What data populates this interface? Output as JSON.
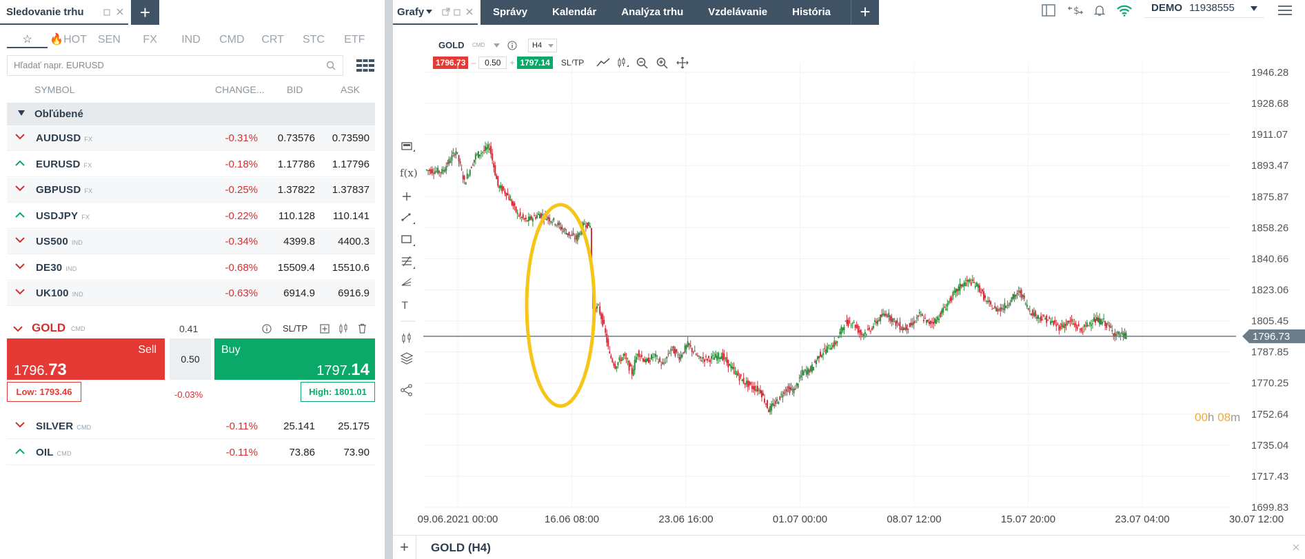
{
  "left_panel": {
    "tab_title": "Sledovanie trhu",
    "categories": [
      "☆",
      "🔥HOT",
      "SEN",
      "FX",
      "IND",
      "CMD",
      "CRT",
      "STC",
      "ETF"
    ],
    "search_placeholder": "Hľadať napr. EURUSD",
    "columns": {
      "symbol": "SYMBOL",
      "change": "CHANGE...",
      "bid": "BID",
      "ask": "ASK"
    },
    "section_title": "Obľúbené",
    "rows": [
      {
        "symbol": "AUDUSD",
        "type": "FX",
        "dir": "down",
        "change": "-0.31%",
        "bid": "0.73576",
        "ask": "0.73590"
      },
      {
        "symbol": "EURUSD",
        "type": "FX",
        "dir": "up",
        "change": "-0.18%",
        "bid": "1.17786",
        "ask": "1.17796"
      },
      {
        "symbol": "GBPUSD",
        "type": "FX",
        "dir": "down",
        "change": "-0.25%",
        "bid": "1.37822",
        "ask": "1.37837"
      },
      {
        "symbol": "USDJPY",
        "type": "FX",
        "dir": "up",
        "change": "-0.22%",
        "bid": "110.128",
        "ask": "110.141"
      },
      {
        "symbol": "US500",
        "type": "IND",
        "dir": "down",
        "change": "-0.34%",
        "bid": "4399.8",
        "ask": "4400.3"
      },
      {
        "symbol": "DE30",
        "type": "IND",
        "dir": "down",
        "change": "-0.68%",
        "bid": "15509.4",
        "ask": "15510.6"
      },
      {
        "symbol": "UK100",
        "type": "IND",
        "dir": "down",
        "change": "-0.63%",
        "bid": "6914.9",
        "ask": "6916.9"
      }
    ],
    "gold": {
      "symbol": "GOLD",
      "type": "CMD",
      "spread": "0.41",
      "sltp": "SL/TP",
      "sell_label": "Sell",
      "sell_price_main": "1796.",
      "sell_price_big": "73",
      "buy_label": "Buy",
      "buy_price_main": "1797.",
      "buy_price_big": "14",
      "lot": "0.50",
      "low": "Low: 1793.46",
      "high": "High: 1801.01",
      "change": "-0.03%"
    },
    "rows_after": [
      {
        "symbol": "SILVER",
        "type": "CMD",
        "dir": "down",
        "change": "-0.11%",
        "bid": "25.141",
        "ask": "25.175"
      },
      {
        "symbol": "OIL",
        "type": "CMD",
        "dir": "up",
        "change": "-0.11%",
        "bid": "73.86",
        "ask": "73.90"
      }
    ]
  },
  "top": {
    "charts_tab": "Grafy",
    "nav_items": [
      "Správy",
      "Kalendár",
      "Analýza trhu",
      "Vzdelávanie",
      "História"
    ],
    "account_type": "DEMO",
    "account_number": "11938555"
  },
  "chart_header": {
    "symbol": "GOLD",
    "type": "CMD",
    "timeframe": "H4",
    "sell_price": "1796.73",
    "lot": "0.50",
    "buy_price": "1797.14",
    "sltp": "SL/TP"
  },
  "chart_data": {
    "type": "candlestick",
    "symbol": "GOLD",
    "timeframe": "H4",
    "y_ticks": [
      "1946.28",
      "1928.68",
      "1911.07",
      "1893.47",
      "1875.87",
      "1858.26",
      "1840.66",
      "1823.06",
      "1805.45",
      "1787.85",
      "1770.25",
      "1752.64",
      "1735.04",
      "1717.43",
      "1699.83"
    ],
    "x_ticks": [
      "09.06.2021 00:00",
      "16.06 08:00",
      "23.06 16:00",
      "01.07 00:00",
      "08.07 12:00",
      "15.07 20:00",
      "23.07 04:00",
      "30.07 12:00"
    ],
    "ylim": [
      1699.83,
      1946.28
    ],
    "current_price": "1796.73",
    "timer": {
      "hours": "00",
      "h": "h",
      "minutes": "08",
      "m": "m"
    },
    "path": [
      [
        0,
        1891
      ],
      [
        12,
        1890
      ],
      [
        22,
        1902
      ],
      [
        28,
        1884
      ],
      [
        36,
        1899
      ],
      [
        46,
        1904
      ],
      [
        52,
        1882
      ],
      [
        58,
        1878
      ],
      [
        66,
        1866
      ],
      [
        72,
        1862
      ],
      [
        82,
        1866
      ],
      [
        92,
        1862
      ],
      [
        100,
        1856
      ],
      [
        108,
        1852
      ],
      [
        114,
        1861
      ],
      [
        118,
        1859
      ],
      [
        120,
        1812
      ],
      [
        124,
        1813
      ],
      [
        128,
        1802
      ],
      [
        132,
        1786
      ],
      [
        136,
        1780
      ],
      [
        142,
        1786
      ],
      [
        148,
        1776
      ],
      [
        152,
        1788
      ],
      [
        158,
        1782
      ],
      [
        164,
        1786
      ],
      [
        170,
        1780
      ],
      [
        176,
        1790
      ],
      [
        182,
        1785
      ],
      [
        188,
        1792
      ],
      [
        196,
        1784
      ],
      [
        204,
        1784
      ],
      [
        212,
        1786
      ],
      [
        220,
        1778
      ],
      [
        228,
        1771
      ],
      [
        234,
        1768
      ],
      [
        240,
        1766
      ],
      [
        246,
        1755
      ],
      [
        252,
        1760
      ],
      [
        258,
        1767
      ],
      [
        264,
        1766
      ],
      [
        270,
        1776
      ],
      [
        276,
        1778
      ],
      [
        282,
        1786
      ],
      [
        288,
        1790
      ],
      [
        294,
        1793
      ],
      [
        300,
        1804
      ],
      [
        306,
        1805
      ],
      [
        312,
        1798
      ],
      [
        318,
        1800
      ],
      [
        324,
        1806
      ],
      [
        330,
        1810
      ],
      [
        336,
        1805
      ],
      [
        342,
        1801
      ],
      [
        348,
        1803
      ],
      [
        354,
        1809
      ],
      [
        360,
        1804
      ],
      [
        366,
        1806
      ],
      [
        372,
        1813
      ],
      [
        378,
        1820
      ],
      [
        384,
        1826
      ],
      [
        390,
        1828
      ],
      [
        396,
        1825
      ],
      [
        402,
        1816
      ],
      [
        408,
        1812
      ],
      [
        414,
        1813
      ],
      [
        420,
        1818
      ],
      [
        426,
        1822
      ],
      [
        432,
        1812
      ],
      [
        438,
        1808
      ],
      [
        446,
        1806
      ],
      [
        454,
        1802
      ],
      [
        462,
        1805
      ],
      [
        470,
        1800
      ],
      [
        478,
        1806
      ],
      [
        486,
        1805
      ],
      [
        494,
        1798
      ],
      [
        502,
        1797
      ]
    ]
  },
  "bottom": {
    "tab_label": "GOLD (H4)"
  }
}
